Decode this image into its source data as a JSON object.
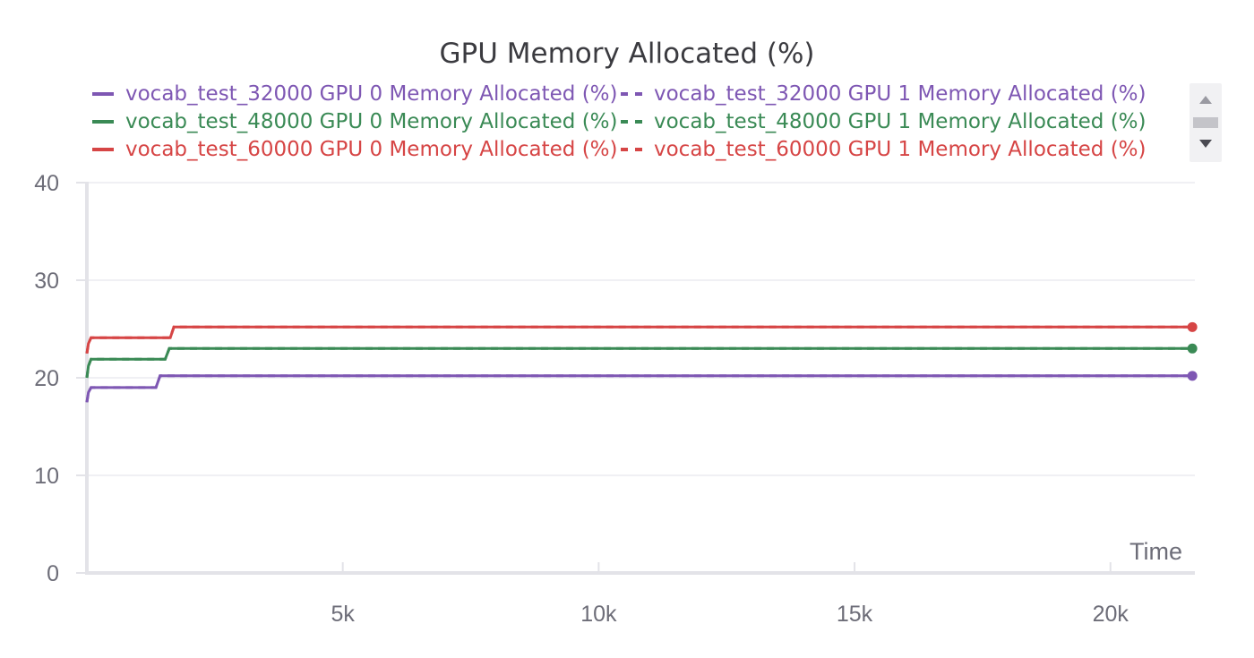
{
  "chart_data": {
    "type": "line",
    "title": "GPU Memory Allocated (%)",
    "xlabel": "Time",
    "ylabel": "",
    "xlim": [
      0,
      21650
    ],
    "ylim": [
      0,
      40
    ],
    "x_ticks": [
      5000,
      10000,
      15000,
      20000
    ],
    "x_tick_labels": [
      "5k",
      "10k",
      "15k",
      "20k"
    ],
    "y_ticks": [
      0,
      10,
      20,
      30,
      40
    ],
    "y_tick_labels": [
      "0",
      "10",
      "20",
      "30",
      "40"
    ],
    "grid": true,
    "legend_position": "top",
    "series": [
      {
        "name": "vocab_test_32000 GPU 0 Memory Allocated (%)",
        "color": "#7e57b3",
        "dash": false,
        "x": [
          0,
          30,
          80,
          1350,
          1430,
          21600
        ],
        "y": [
          17.5,
          18.5,
          19.0,
          19.0,
          20.2,
          20.2
        ]
      },
      {
        "name": "vocab_test_32000 GPU 1 Memory Allocated (%)",
        "color": "#7e57b3",
        "dash": true,
        "x": [
          0,
          30,
          80,
          1350,
          1430,
          21600
        ],
        "y": [
          17.5,
          18.5,
          19.0,
          19.0,
          20.2,
          20.2
        ]
      },
      {
        "name": "vocab_test_48000 GPU 0 Memory Allocated (%)",
        "color": "#3a8a55",
        "dash": false,
        "x": [
          0,
          30,
          80,
          1530,
          1610,
          21600
        ],
        "y": [
          20.0,
          21.2,
          21.9,
          21.9,
          23.0,
          23.0
        ]
      },
      {
        "name": "vocab_test_48000 GPU 1 Memory Allocated (%)",
        "color": "#3a8a55",
        "dash": true,
        "x": [
          0,
          30,
          80,
          1530,
          1610,
          21600
        ],
        "y": [
          20.0,
          21.2,
          21.9,
          21.9,
          23.0,
          23.0
        ]
      },
      {
        "name": "vocab_test_60000 GPU 0 Memory Allocated (%)",
        "color": "#d64545",
        "dash": false,
        "x": [
          0,
          30,
          80,
          1630,
          1700,
          21600
        ],
        "y": [
          22.5,
          23.5,
          24.1,
          24.1,
          25.2,
          25.2
        ]
      },
      {
        "name": "vocab_test_60000 GPU 1 Memory Allocated (%)",
        "color": "#d64545",
        "dash": true,
        "x": [
          0,
          30,
          80,
          1630,
          1700,
          21600
        ],
        "y": [
          22.5,
          23.5,
          24.1,
          24.1,
          25.2,
          25.2
        ]
      }
    ]
  }
}
